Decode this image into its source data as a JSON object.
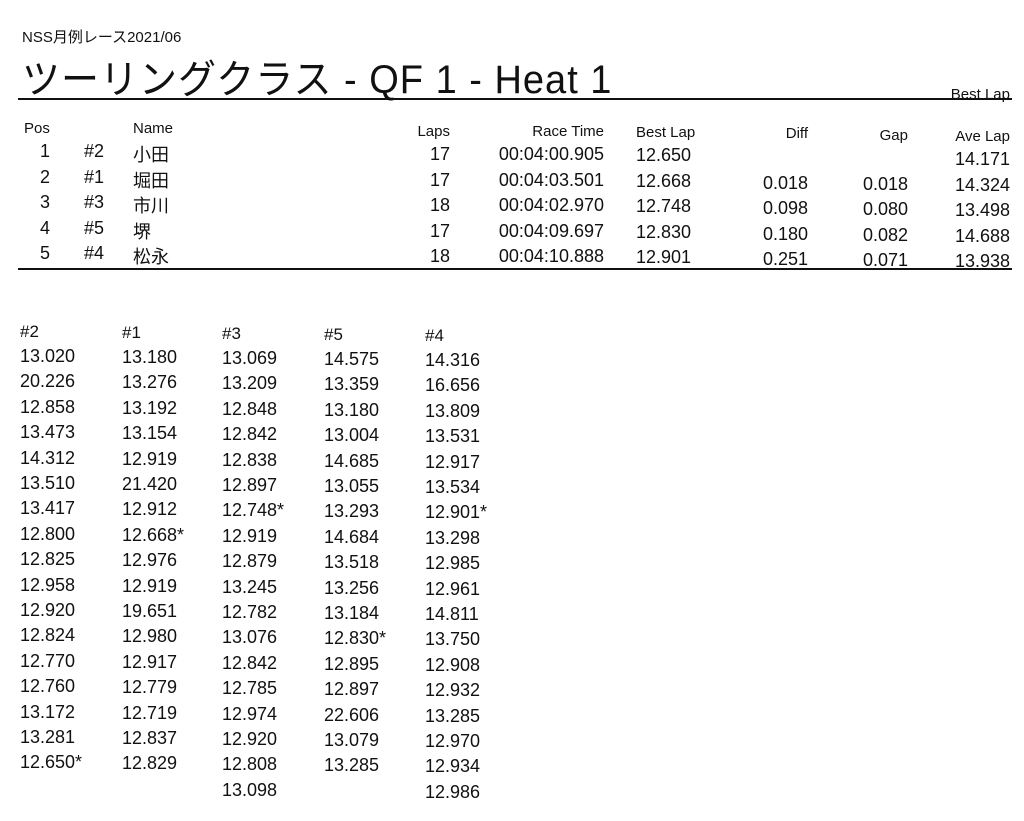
{
  "document": {
    "subtitle": "NSS月例レース2021/06",
    "title": "ツーリングクラス  -  QF 1  -  Heat 1",
    "best_lap_label": "Best Lap"
  },
  "results": {
    "columns": {
      "pos": "Pos",
      "name": "Name",
      "laps": "Laps",
      "race_time": "Race Time",
      "best_lap": "Best Lap",
      "diff": "Diff",
      "gap": "Gap",
      "ave_lap": "Ave Lap"
    },
    "rows": [
      {
        "pos": "1",
        "car": "#2",
        "name": "小田",
        "laps": "17",
        "race_time": "00:04:00.905",
        "best_lap": "12.650",
        "diff": "",
        "gap": "",
        "ave_lap": "14.171"
      },
      {
        "pos": "2",
        "car": "#1",
        "name": "堀田",
        "laps": "17",
        "race_time": "00:04:03.501",
        "best_lap": "12.668",
        "diff": "0.018",
        "gap": "0.018",
        "ave_lap": "14.324"
      },
      {
        "pos": "3",
        "car": "#3",
        "name": "市川",
        "laps": "18",
        "race_time": "00:04:02.970",
        "best_lap": "12.748",
        "diff": "0.098",
        "gap": "0.080",
        "ave_lap": "13.498"
      },
      {
        "pos": "4",
        "car": "#5",
        "name": "堺",
        "laps": "17",
        "race_time": "00:04:09.697",
        "best_lap": "12.830",
        "diff": "0.180",
        "gap": "0.082",
        "ave_lap": "14.688"
      },
      {
        "pos": "5",
        "car": "#4",
        "name": "松永",
        "laps": "18",
        "race_time": "00:04:10.888",
        "best_lap": "12.901",
        "diff": "0.251",
        "gap": "0.071",
        "ave_lap": "13.938"
      }
    ]
  },
  "lap_times": [
    {
      "car": "#2",
      "laps": [
        "13.020",
        "20.226",
        "12.858",
        "13.473",
        "14.312",
        "13.510",
        "13.417",
        "12.800",
        "12.825",
        "12.958",
        "12.920",
        "12.824",
        "12.770",
        "12.760",
        "13.172",
        "13.281",
        "12.650*"
      ]
    },
    {
      "car": "#1",
      "laps": [
        "13.180",
        "13.276",
        "13.192",
        "13.154",
        "12.919",
        "21.420",
        "12.912",
        "12.668*",
        "12.976",
        "12.919",
        "19.651",
        "12.980",
        "12.917",
        "12.779",
        "12.719",
        "12.837",
        "12.829"
      ]
    },
    {
      "car": "#3",
      "laps": [
        "13.069",
        "13.209",
        "12.848",
        "12.842",
        "12.838",
        "12.897",
        "12.748*",
        "12.919",
        "12.879",
        "13.245",
        "12.782",
        "13.076",
        "12.842",
        "12.785",
        "12.974",
        "12.920",
        "12.808",
        "13.098"
      ]
    },
    {
      "car": "#5",
      "laps": [
        "14.575",
        "13.359",
        "13.180",
        "13.004",
        "14.685",
        "13.055",
        "13.293",
        "14.684",
        "13.518",
        "13.256",
        "13.184",
        "12.830*",
        "12.895",
        "12.897",
        "22.606",
        "13.079",
        "13.285"
      ]
    },
    {
      "car": "#4",
      "laps": [
        "14.316",
        "16.656",
        "13.809",
        "13.531",
        "12.917",
        "13.534",
        "12.901*",
        "13.298",
        "12.985",
        "12.961",
        "14.811",
        "13.750",
        "12.908",
        "12.932",
        "13.285",
        "12.970",
        "12.934",
        "12.986"
      ]
    }
  ]
}
